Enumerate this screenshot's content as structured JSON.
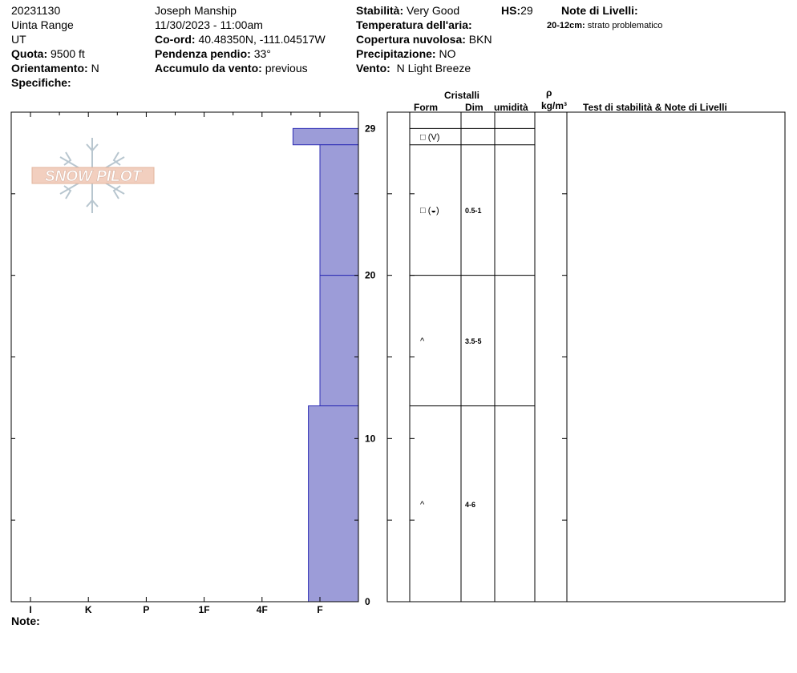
{
  "header": {
    "date": "20231130",
    "range": "Uinta Range",
    "state": "UT",
    "elevation_label": "Quota:",
    "elevation_value": "9500 ft",
    "aspect_label": "Orientamento:",
    "aspect_value": "N",
    "specifics_label": "Specifiche:",
    "observer": "Joseph Manship",
    "datetime": "11/30/2023 - 11:00am",
    "coord_label": "Co-ord:",
    "coord_value": "40.48350N, -111.04517W",
    "slope_label": "Pendenza pendio:",
    "slope_value": "33°",
    "wind_loading_label": "Accumulo da vento:",
    "wind_loading_value": "previous",
    "stability_label": "Stabilità:",
    "stability_value": "Very Good",
    "hs_label": "HS:",
    "hs_value": "29",
    "air_temp_label": "Temperatura dell'aria:",
    "sky_label": "Copertura nuvolosa:",
    "sky_value": "BKN",
    "precip_label": "Precipitazione:",
    "precip_value": "NO",
    "wind_label": "Vento:",
    "wind_value": "N Light Breeze",
    "layer_notes_title": "Note di Livelli:",
    "layer_note_range": "20-12cm:",
    "layer_note_text": "strato problematico"
  },
  "logo_text": "SNOW PILOT",
  "columns": {
    "crystals": "Cristalli",
    "form": "Form",
    "size": "Dim",
    "moisture": "umidità",
    "rho": "ρ",
    "density_unit": "kg/m³",
    "stability_notes": "Test di stabilità & Note di Livelli"
  },
  "notes_label": "Note:",
  "chart_data": {
    "type": "bar",
    "orientation": "horizontal-profile",
    "xlabel": "",
    "ylabel": "",
    "hardness_scale": [
      "I",
      "K",
      "P",
      "1F",
      "4F",
      "F"
    ],
    "y_ticks": [
      "0",
      "10",
      "20",
      "29"
    ],
    "ylim": [
      0,
      29
    ],
    "fill_color": "#9c9cd8",
    "layers": [
      {
        "top": 29,
        "bottom": 28,
        "hardness_index": 1.7,
        "form": "□ (V)",
        "size": ""
      },
      {
        "top": 28,
        "bottom": 20,
        "hardness_index": 1.0,
        "form": "□ (◒)",
        "size": "0.5-1"
      },
      {
        "top": 20,
        "bottom": 12,
        "hardness_index": 1.0,
        "form": "^",
        "size": "3.5-5"
      },
      {
        "top": 12,
        "bottom": 0,
        "hardness_index": 1.3,
        "form": "^",
        "size": "4-6"
      }
    ]
  }
}
